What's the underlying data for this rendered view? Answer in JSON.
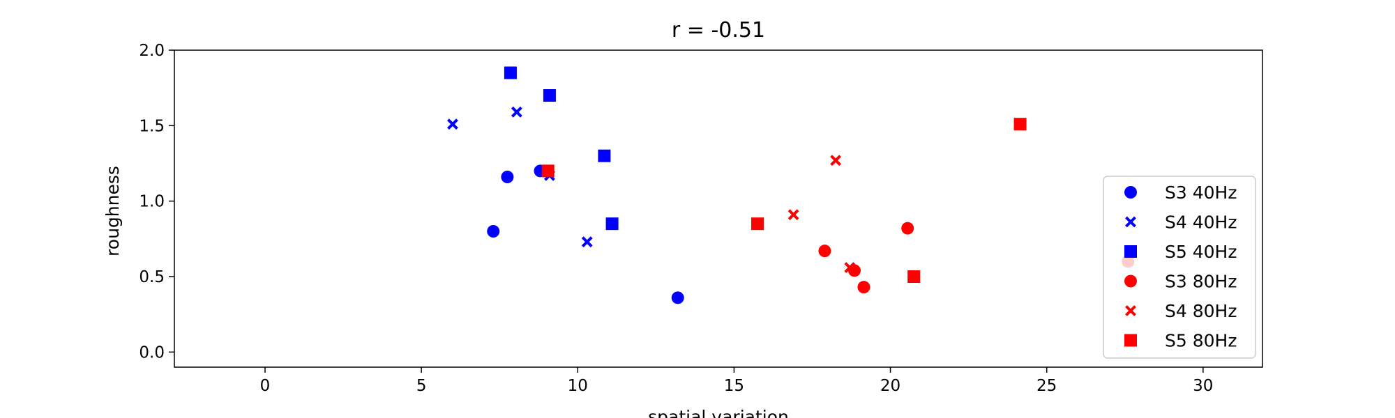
{
  "chart_data": {
    "type": "scatter",
    "title": "r = -0.51",
    "xlabel": "spatial variation",
    "ylabel": "roughness",
    "xlim": [
      -2.9,
      31.9
    ],
    "ylim": [
      -0.1,
      2.0
    ],
    "xticks": [
      0,
      5,
      10,
      15,
      20,
      25,
      30
    ],
    "yticks": [
      0.0,
      0.5,
      1.0,
      1.5,
      2.0
    ],
    "xtick_labels": [
      "0",
      "5",
      "10",
      "15",
      "20",
      "25",
      "30"
    ],
    "ytick_labels": [
      "0.0",
      "0.5",
      "1.0",
      "1.5",
      "2.0"
    ],
    "grid": false,
    "legend_position": "right",
    "series": [
      {
        "name": "S3 40Hz",
        "marker": "circle",
        "color": "#0000ff",
        "points": [
          [
            7.3,
            0.8
          ],
          [
            7.75,
            1.16
          ],
          [
            8.8,
            1.2
          ],
          [
            13.2,
            0.36
          ]
        ]
      },
      {
        "name": "S4 40Hz",
        "marker": "x",
        "color": "#0000ff",
        "points": [
          [
            6.0,
            1.51
          ],
          [
            8.05,
            1.59
          ],
          [
            9.1,
            1.17
          ],
          [
            10.3,
            0.73
          ]
        ]
      },
      {
        "name": "S5 40Hz",
        "marker": "square",
        "color": "#0000ff",
        "points": [
          [
            7.85,
            1.85
          ],
          [
            9.1,
            1.7
          ],
          [
            10.85,
            1.3
          ],
          [
            11.1,
            0.85
          ]
        ]
      },
      {
        "name": "S3 80Hz",
        "marker": "circle",
        "color": "#ff0000",
        "points": [
          [
            17.9,
            0.67
          ],
          [
            18.85,
            0.54
          ],
          [
            19.15,
            0.43
          ],
          [
            20.55,
            0.82
          ],
          [
            27.6,
            0.6
          ]
        ]
      },
      {
        "name": "S4 80Hz",
        "marker": "x",
        "color": "#ff0000",
        "points": [
          [
            16.9,
            0.91
          ],
          [
            18.25,
            1.27
          ],
          [
            18.7,
            0.56
          ],
          [
            27.6,
            0.6
          ]
        ]
      },
      {
        "name": "S5 80Hz",
        "marker": "square",
        "color": "#ff0000",
        "points": [
          [
            9.05,
            1.2
          ],
          [
            15.75,
            0.85
          ],
          [
            20.75,
            0.5
          ],
          [
            24.15,
            1.51
          ]
        ]
      }
    ]
  }
}
